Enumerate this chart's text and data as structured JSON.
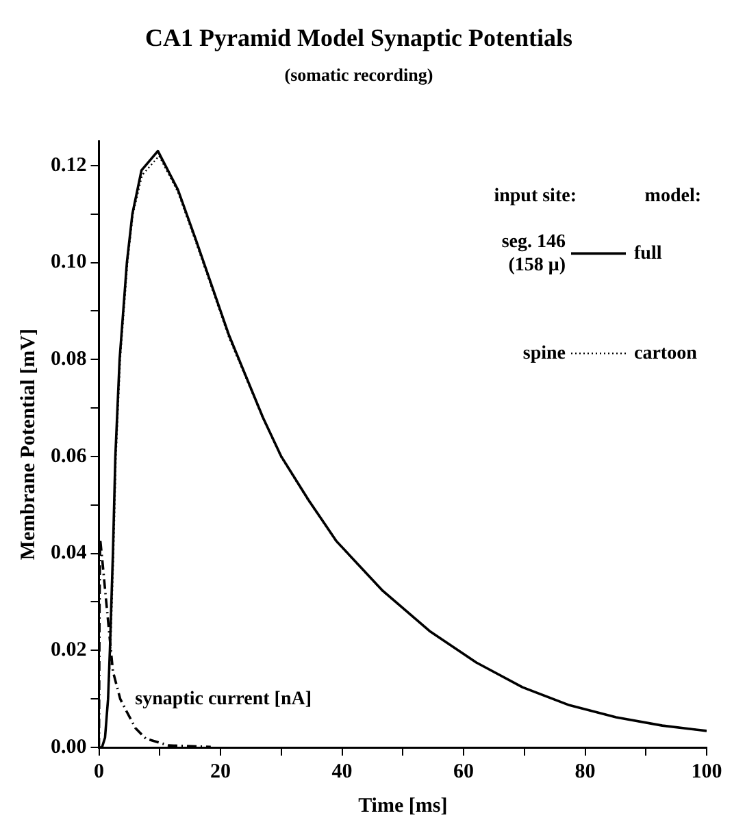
{
  "chart_data": {
    "type": "line",
    "title": "CA1 Pyramid Model Synaptic Potentials",
    "subtitle": "(somatic recording)",
    "xlabel": "Time [ms]",
    "ylabel": "Membrane Potential [mV]",
    "xlim": [
      0,
      100
    ],
    "ylim": [
      0,
      0.125
    ],
    "xticks": [
      0,
      {
        "value": 10,
        "label": null
      },
      20,
      {
        "value": 30,
        "label": null
      },
      40,
      {
        "value": 50,
        "label": null
      },
      60,
      {
        "value": 70,
        "label": null
      },
      80,
      {
        "value": 90,
        "label": null
      },
      100
    ],
    "yticks": [
      {
        "value": 0,
        "label": "0.00"
      },
      {
        "value": 0.01,
        "label": null
      },
      {
        "value": 0.02,
        "label": "0.02"
      },
      {
        "value": 0.03,
        "label": null
      },
      {
        "value": 0.04,
        "label": "0.04"
      },
      {
        "value": 0.05,
        "label": null
      },
      {
        "value": 0.06,
        "label": "0.06"
      },
      {
        "value": 0.07,
        "label": null
      },
      {
        "value": 0.08,
        "label": "0.08"
      },
      {
        "value": 0.09,
        "label": null
      },
      {
        "value": 0.1,
        "label": "0.10"
      },
      {
        "value": 0.11,
        "label": null
      },
      {
        "value": 0.12,
        "label": "0.12"
      }
    ],
    "grid": false,
    "legend": "top right",
    "marker": "none",
    "annotations": [
      "input site:",
      "model:",
      "seg. 146",
      "(158 μ)",
      "spine"
    ],
    "series": [
      {
        "name": "full",
        "color": "#000000",
        "line_style": "solid",
        "x": [
          0,
          0.5,
          1,
          1.5,
          1.8,
          2.3,
          2.7,
          3.4,
          4.6,
          5.5,
          7,
          9.7,
          13,
          16,
          21.4,
          27,
          30,
          34.5,
          39.1,
          46.7,
          54.4,
          62.1,
          69.7,
          77.4,
          85.1,
          92.7,
          100
        ],
        "values": [
          0,
          0,
          0.002,
          0.01,
          0.02,
          0.04,
          0.06,
          0.08,
          0.1,
          0.11,
          0.119,
          0.123,
          0.115,
          0.1045,
          0.085,
          0.068,
          0.06,
          0.051,
          0.0425,
          0.0323,
          0.024,
          0.0175,
          0.0124,
          0.0087,
          0.0062,
          0.0045,
          0.0034
        ]
      },
      {
        "name": "cartoon",
        "color": "#000000",
        "line_style": "dotted",
        "x": [
          0,
          0.5,
          1,
          1.5,
          1.9,
          2.4,
          2.8,
          3.5,
          4.7,
          5.6,
          7.1,
          9.9,
          13,
          16,
          21.4,
          27,
          30,
          34.5,
          39.1,
          46.7,
          54.4,
          62.1,
          69.7,
          77.4,
          85.1,
          92.7,
          100
        ],
        "values": [
          0,
          0,
          0.002,
          0.01,
          0.02,
          0.04,
          0.06,
          0.08,
          0.1,
          0.11,
          0.118,
          0.122,
          0.1145,
          0.104,
          0.0845,
          0.0678,
          0.0598,
          0.0508,
          0.0424,
          0.0322,
          0.024,
          0.0175,
          0.0124,
          0.0087,
          0.0062,
          0.0045,
          0.0034
        ]
      },
      {
        "name": "synaptic current [nA]",
        "color": "#000000",
        "line_style": "dashdot",
        "x": [
          0,
          0.1,
          0.2,
          0.6,
          1.2,
          2.3,
          3.5,
          4.6,
          6,
          7.7,
          11.5,
          18.4
        ],
        "values": [
          0,
          0.03,
          0.043,
          0.038,
          0.03,
          0.0157,
          0.01,
          0.0073,
          0.004,
          0.0018,
          0.0004,
          0.0001
        ]
      }
    ]
  }
}
